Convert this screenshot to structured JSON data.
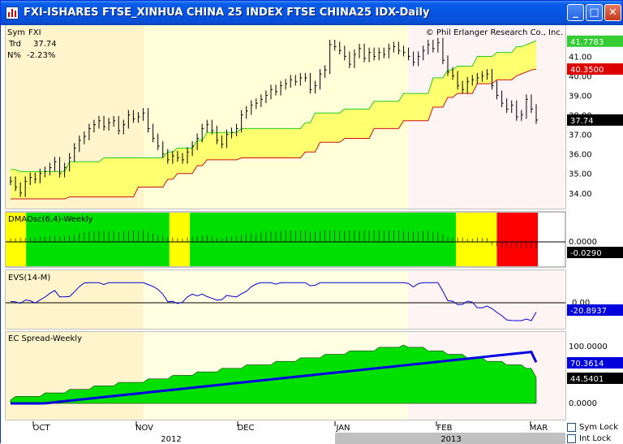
{
  "window": {
    "title": "FXI-ISHARES FTSE_XINHUA CHINA 25 INDEX FTSE CHINA25 IDX-Daily",
    "min_glyph": "_",
    "max_glyph": "□",
    "close_glyph": "✕"
  },
  "header": {
    "sym_label": "Sym",
    "sym_value": "FXI",
    "trd_label": "Trd",
    "trd_value": "37.74",
    "pct_label": "N%",
    "pct_value": "-2.23%",
    "copyright": "© Phil Erlanger Research Co., Inc."
  },
  "colors": {
    "band_fill": "#ffff70",
    "band_upper": "#22cc22",
    "band_lower": "#cc1111",
    "osc_green": "#00e000",
    "osc_yellow": "#ffff00",
    "osc_red": "#ff0000",
    "evs_line": "#0000cc",
    "spread_fill": "#00e000",
    "spread_line": "#0000e0",
    "price_tag_green": "#33cc33",
    "price_tag_red": "#dd0000",
    "price_tag_black": "#000000",
    "price_tag_blue": "#0000dd",
    "season_yellow": "#ffffd8",
    "season_pink": "#fff4f4",
    "season_tan": "#fff4cc"
  },
  "price_axis": {
    "ticks": [
      "41.00",
      "40.00",
      "39.00",
      "38.00",
      "37.00",
      "36.00",
      "35.00",
      "34.00"
    ],
    "tick_values": [
      41,
      40,
      39,
      38,
      37,
      36,
      35,
      34
    ],
    "ylim": [
      33.2,
      42.6
    ],
    "tags": [
      {
        "label": "41.7783",
        "value": 41.7783,
        "color": "price_tag_green"
      },
      {
        "label": "40.3500",
        "value": 40.35,
        "color": "price_tag_red"
      },
      {
        "label": "37.74",
        "value": 37.74,
        "color": "price_tag_black"
      }
    ]
  },
  "panels": {
    "dmaosc": {
      "title": "DMAOsc(6,4)-Weekly",
      "zero_label": "0.0000",
      "value_tag": "-0.0290",
      "segments": [
        {
          "weeks": 1,
          "color": "osc_yellow"
        },
        {
          "weeks": 7,
          "color": "osc_green"
        },
        {
          "weeks": 1,
          "color": "osc_yellow"
        },
        {
          "weeks": 13,
          "color": "osc_green"
        },
        {
          "weeks": 2,
          "color": "osc_yellow"
        },
        {
          "weeks": 2,
          "color": "osc_red"
        }
      ]
    },
    "evs": {
      "title": "EVS(14-M)",
      "zero_label": "0.00",
      "value_tag": "-20.8937",
      "value": -20.8937
    },
    "spread": {
      "title": "EC Spread-Weekly",
      "top_label": "100.0000",
      "zero_label": "0.0000",
      "tag_blue": "70.3614",
      "tag_black": "44.5401",
      "value_blue": 70.3614,
      "value_black": 44.5401
    }
  },
  "x_axis": {
    "months": [
      "OCT",
      "NOV",
      "DEC",
      "JAN",
      "FEB",
      "MAR"
    ],
    "years": [
      "2012",
      "2013"
    ]
  },
  "locks": {
    "sym_lock": "Sym Lock",
    "int_lock": "Int Lock"
  },
  "chart_data": {
    "type": "line",
    "title": "FXI-ISHARES FTSE_XINHUA CHINA 25 INDEX FTSE CHINA25 IDX-Daily",
    "xlabel": "",
    "ylabel": "",
    "ylim": [
      33.2,
      42.6
    ],
    "series": [
      {
        "values": [
          34.6,
          34.3,
          34.0,
          34.6,
          34.8,
          34.7,
          35.0,
          35.1,
          35.3,
          35.6,
          35.0,
          35.3,
          35.8,
          36.3,
          36.7,
          36.9,
          37.3,
          37.5,
          37.7,
          37.4,
          37.6,
          37.7,
          37.2,
          37.5,
          38.0,
          37.8,
          37.9,
          38.1,
          37.3,
          36.8,
          36.4,
          36.0,
          35.7,
          35.9,
          35.8,
          35.7,
          36.1,
          36.4,
          36.8,
          37.3,
          37.5,
          37.2,
          36.7,
          36.5,
          37.0,
          37.1,
          37.3,
          38.0,
          38.2,
          38.5,
          38.6,
          38.8,
          39.0,
          39.3,
          39.2,
          39.5,
          39.6,
          39.8,
          39.7,
          39.9,
          39.9,
          39.3,
          39.5,
          40.1,
          40.3,
          41.6,
          41.5,
          41.3,
          41.0,
          40.6,
          41.1,
          41.4,
          40.9,
          41.2,
          41.0,
          41.2,
          41.1,
          41.4,
          41.5,
          41.3,
          41.2,
          41.0,
          40.7,
          41.0,
          41.3,
          41.6,
          41.4,
          41.7,
          40.8,
          40.2,
          40.0,
          39.5,
          39.3,
          39.7,
          39.8,
          39.9,
          40.0,
          40.1,
          39.5,
          39.0,
          38.6,
          38.3,
          38.5,
          37.9,
          38.0,
          38.8,
          38.3,
          37.74
        ]
      },
      {
        "values": [
          35.2,
          35.2,
          35.1,
          35.1,
          35.1,
          35.1,
          35.1,
          35.1,
          35.1,
          35.1,
          35.1,
          35.1,
          35.6,
          35.6,
          35.6,
          35.6,
          35.6,
          35.6,
          35.6,
          35.8,
          35.8,
          35.8,
          35.8,
          35.8,
          35.8,
          35.8,
          35.8,
          35.8,
          35.8,
          35.8,
          35.8,
          35.8,
          36.1,
          36.1,
          36.3,
          36.3,
          36.3,
          36.3,
          36.7,
          36.7,
          37.1,
          37.1,
          37.1,
          37.1,
          37.1,
          37.1,
          37.1,
          37.3,
          37.3,
          37.3,
          37.3,
          37.3,
          37.3,
          37.3,
          37.3,
          37.3,
          37.3,
          37.3,
          37.3,
          37.3,
          37.6,
          37.6,
          38.1,
          38.1,
          38.1,
          38.1,
          38.1,
          38.1,
          38.3,
          38.3,
          38.3,
          38.3,
          38.3,
          38.3,
          38.7,
          38.7,
          38.7,
          38.7,
          38.7,
          38.7,
          39.1,
          39.1,
          39.1,
          39.1,
          39.1,
          39.1,
          39.9,
          39.9,
          39.9,
          40.3,
          40.3,
          40.5,
          40.5,
          40.5,
          40.5,
          41.0,
          41.0,
          41.0,
          41.0,
          41.2,
          41.2,
          41.2,
          41.2,
          41.5,
          41.5,
          41.6,
          41.7,
          41.8
        ]
      },
      {
        "values": [
          33.7,
          33.7,
          33.7,
          33.7,
          33.7,
          33.7,
          33.7,
          33.7,
          33.7,
          33.7,
          33.7,
          33.7,
          33.8,
          33.8,
          33.8,
          33.8,
          33.8,
          33.8,
          33.8,
          33.8,
          33.8,
          33.8,
          33.8,
          33.8,
          33.8,
          33.8,
          34.3,
          34.3,
          34.3,
          34.3,
          34.3,
          34.3,
          34.7,
          34.7,
          35.0,
          35.0,
          35.0,
          35.0,
          35.4,
          35.4,
          35.7,
          35.7,
          35.7,
          35.7,
          35.7,
          35.7,
          35.7,
          35.8,
          35.8,
          35.8,
          35.8,
          35.8,
          35.8,
          35.8,
          35.8,
          35.8,
          35.8,
          35.8,
          35.8,
          35.8,
          36.1,
          36.1,
          36.1,
          36.6,
          36.6,
          36.6,
          36.6,
          36.6,
          36.8,
          36.8,
          36.8,
          36.8,
          36.8,
          36.8,
          37.3,
          37.3,
          37.3,
          37.3,
          37.3,
          37.3,
          37.7,
          37.7,
          37.7,
          37.7,
          37.7,
          37.7,
          38.4,
          38.4,
          38.4,
          38.9,
          38.9,
          39.1,
          39.1,
          39.1,
          39.1,
          39.6,
          39.6,
          39.6,
          39.6,
          39.8,
          39.8,
          39.8,
          39.8,
          40.0,
          40.1,
          40.2,
          40.3,
          40.35
        ]
      }
    ]
  }
}
